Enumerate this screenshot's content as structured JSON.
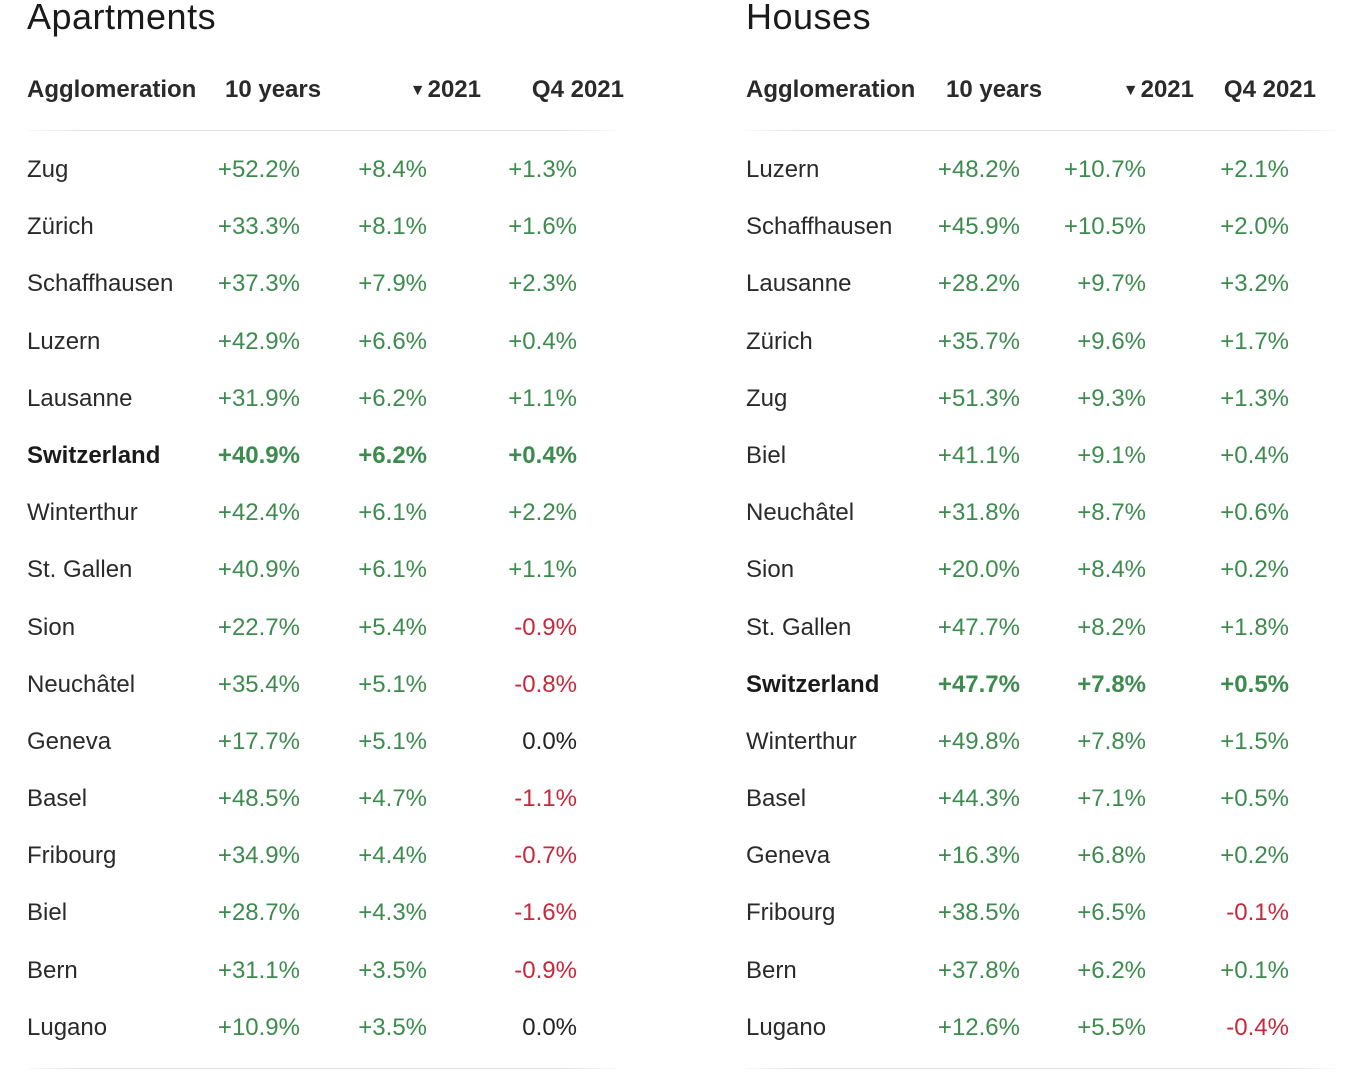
{
  "chart_data": [
    {
      "type": "table",
      "title": "Apartments",
      "columns": [
        "Agglomeration",
        "10 years",
        "2021",
        "Q4 2021"
      ],
      "sorted_column": "2021",
      "sort_direction": "descending",
      "rows": [
        {
          "name": "Zug",
          "ten_years": "+52.2%",
          "y2021": "+8.4%",
          "q4_2021": "+1.3%"
        },
        {
          "name": "Zürich",
          "ten_years": "+33.3%",
          "y2021": "+8.1%",
          "q4_2021": "+1.6%"
        },
        {
          "name": "Schaffhausen",
          "ten_years": "+37.3%",
          "y2021": "+7.9%",
          "q4_2021": "+2.3%"
        },
        {
          "name": "Luzern",
          "ten_years": "+42.9%",
          "y2021": "+6.6%",
          "q4_2021": "+0.4%"
        },
        {
          "name": "Lausanne",
          "ten_years": "+31.9%",
          "y2021": "+6.2%",
          "q4_2021": "+1.1%"
        },
        {
          "name": "Switzerland",
          "ten_years": "+40.9%",
          "y2021": "+6.2%",
          "q4_2021": "+0.4%",
          "bold": true
        },
        {
          "name": "Winterthur",
          "ten_years": "+42.4%",
          "y2021": "+6.1%",
          "q4_2021": "+2.2%"
        },
        {
          "name": "St. Gallen",
          "ten_years": "+40.9%",
          "y2021": "+6.1%",
          "q4_2021": "+1.1%"
        },
        {
          "name": "Sion",
          "ten_years": "+22.7%",
          "y2021": "+5.4%",
          "q4_2021": "-0.9%"
        },
        {
          "name": "Neuchâtel",
          "ten_years": "+35.4%",
          "y2021": "+5.1%",
          "q4_2021": "-0.8%"
        },
        {
          "name": "Geneva",
          "ten_years": "+17.7%",
          "y2021": "+5.1%",
          "q4_2021": "0.0%"
        },
        {
          "name": "Basel",
          "ten_years": "+48.5%",
          "y2021": "+4.7%",
          "q4_2021": "-1.1%"
        },
        {
          "name": "Fribourg",
          "ten_years": "+34.9%",
          "y2021": "+4.4%",
          "q4_2021": "-0.7%"
        },
        {
          "name": "Biel",
          "ten_years": "+28.7%",
          "y2021": "+4.3%",
          "q4_2021": "-1.6%"
        },
        {
          "name": "Bern",
          "ten_years": "+31.1%",
          "y2021": "+3.5%",
          "q4_2021": "-0.9%"
        },
        {
          "name": "Lugano",
          "ten_years": "+10.9%",
          "y2021": "+3.5%",
          "q4_2021": "0.0%"
        }
      ]
    },
    {
      "type": "table",
      "title": "Houses",
      "columns": [
        "Agglomeration",
        "10 years",
        "2021",
        "Q4 2021"
      ],
      "sorted_column": "2021",
      "sort_direction": "descending",
      "rows": [
        {
          "name": "Luzern",
          "ten_years": "+48.2%",
          "y2021": "+10.7%",
          "q4_2021": "+2.1%"
        },
        {
          "name": "Schaffhausen",
          "ten_years": "+45.9%",
          "y2021": "+10.5%",
          "q4_2021": "+2.0%"
        },
        {
          "name": "Lausanne",
          "ten_years": "+28.2%",
          "y2021": "+9.7%",
          "q4_2021": "+3.2%"
        },
        {
          "name": "Zürich",
          "ten_years": "+35.7%",
          "y2021": "+9.6%",
          "q4_2021": "+1.7%"
        },
        {
          "name": "Zug",
          "ten_years": "+51.3%",
          "y2021": "+9.3%",
          "q4_2021": "+1.3%"
        },
        {
          "name": "Biel",
          "ten_years": "+41.1%",
          "y2021": "+9.1%",
          "q4_2021": "+0.4%"
        },
        {
          "name": "Neuchâtel",
          "ten_years": "+31.8%",
          "y2021": "+8.7%",
          "q4_2021": "+0.6%"
        },
        {
          "name": "Sion",
          "ten_years": "+20.0%",
          "y2021": "+8.4%",
          "q4_2021": "+0.2%"
        },
        {
          "name": "St. Gallen",
          "ten_years": "+47.7%",
          "y2021": "+8.2%",
          "q4_2021": "+1.8%"
        },
        {
          "name": "Switzerland",
          "ten_years": "+47.7%",
          "y2021": "+7.8%",
          "q4_2021": "+0.5%",
          "bold": true
        },
        {
          "name": "Winterthur",
          "ten_years": "+49.8%",
          "y2021": "+7.8%",
          "q4_2021": "+1.5%"
        },
        {
          "name": "Basel",
          "ten_years": "+44.3%",
          "y2021": "+7.1%",
          "q4_2021": "+0.5%"
        },
        {
          "name": "Geneva",
          "ten_years": "+16.3%",
          "y2021": "+6.8%",
          "q4_2021": "+0.2%"
        },
        {
          "name": "Fribourg",
          "ten_years": "+38.5%",
          "y2021": "+6.5%",
          "q4_2021": "-0.1%"
        },
        {
          "name": "Bern",
          "ten_years": "+37.8%",
          "y2021": "+6.2%",
          "q4_2021": "+0.1%"
        },
        {
          "name": "Lugano",
          "ten_years": "+12.6%",
          "y2021": "+5.5%",
          "q4_2021": "-0.4%"
        }
      ]
    }
  ],
  "colors": {
    "positive": "#3d8b4f",
    "negative": "#c8283c",
    "neutral": "#222222"
  },
  "icons": {
    "sort": "sort-descending-arrow-icon",
    "sort_glyph": "▼"
  }
}
